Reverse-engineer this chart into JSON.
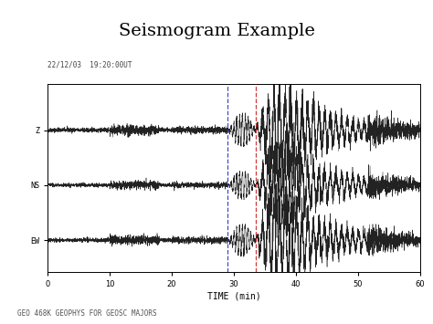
{
  "title": "Seismogram Example",
  "xlabel": "TIME (min)",
  "xlim": [
    0,
    60
  ],
  "x_ticks": [
    0,
    10,
    20,
    30,
    40,
    50,
    60
  ],
  "timestamp_label": "22/12/03  19:20:00UT",
  "blue_vline": 29.0,
  "red_vline": 33.5,
  "trace_labels": [
    "Z",
    "NS",
    "EW"
  ],
  "trace_offsets": [
    0.6,
    0.0,
    -0.6
  ],
  "footer_text": "GEO 468K GEOPHYS FOR GEOSC MAJORS",
  "bg_color": "#ffffff",
  "trace_color": "#222222",
  "noise_seed": 42,
  "title_fontsize": 14,
  "label_fontsize": 6,
  "tick_fontsize": 6,
  "xlabel_fontsize": 7
}
